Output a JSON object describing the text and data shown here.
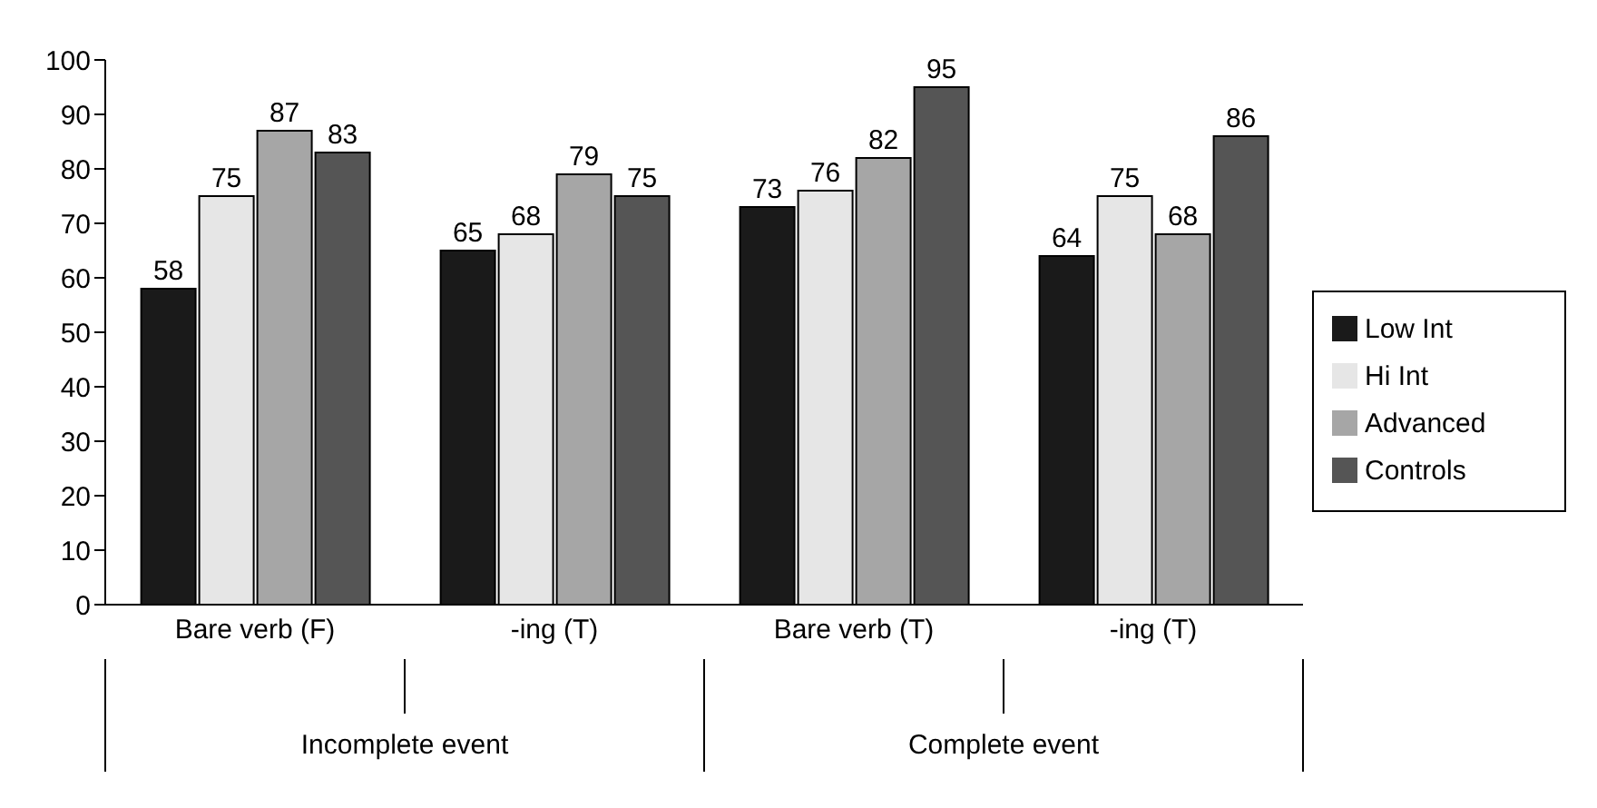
{
  "chart_data": {
    "type": "bar",
    "categories": [
      "Bare verb (F)",
      "-ing (T)",
      "Bare verb (T)",
      "-ing (T)"
    ],
    "series": [
      {
        "name": "Low Int",
        "color": "#1a1a1a",
        "values": [
          58,
          65,
          73,
          64
        ]
      },
      {
        "name": "Hi Int",
        "color": "#e6e6e6",
        "values": [
          75,
          68,
          76,
          75
        ]
      },
      {
        "name": "Advanced",
        "color": "#a6a6a6",
        "values": [
          87,
          79,
          82,
          68
        ]
      },
      {
        "name": "Controls",
        "color": "#555555",
        "values": [
          83,
          75,
          95,
          86
        ]
      }
    ],
    "annotations": [
      "Incomplete event",
      "Complete event"
    ],
    "ylim": [
      0,
      100
    ],
    "yticks": [
      0,
      10,
      20,
      30,
      40,
      50,
      60,
      70,
      80,
      90,
      100
    ],
    "data_labels": true,
    "legend": "right",
    "grid": false
  }
}
